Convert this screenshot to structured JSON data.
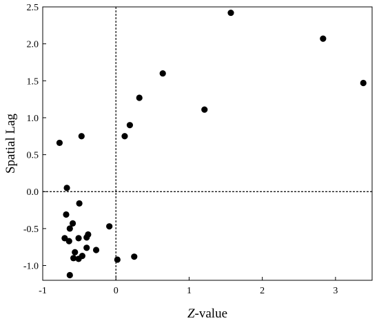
{
  "chart_data": {
    "type": "scatter",
    "xlabel_italic": "Z",
    "xlabel_rest": "-value",
    "ylabel": "Spatial Lag",
    "xlim": [
      -1,
      3.5
    ],
    "ylim": [
      -1.2,
      2.5
    ],
    "x_ticks": [
      -1,
      0,
      1,
      2,
      3
    ],
    "y_ticks": [
      2.5,
      2.0,
      1.5,
      1.0,
      0.5,
      0.0,
      -0.5,
      -1.0
    ],
    "x_tick_labels": [
      "-1",
      "0",
      "1",
      "2",
      "3"
    ],
    "y_tick_labels": [
      "2.5",
      "2.0",
      "1.5",
      "1.0",
      "0.5",
      "0.0",
      "-0.5",
      "-1.0"
    ],
    "reference_lines": {
      "x": 0,
      "y": 0,
      "style": "dashed"
    },
    "grid": false,
    "marker_color": "#000000",
    "points": [
      {
        "x": 1.57,
        "y": 2.42
      },
      {
        "x": 2.83,
        "y": 2.07
      },
      {
        "x": 3.38,
        "y": 1.47
      },
      {
        "x": 0.64,
        "y": 1.6
      },
      {
        "x": 0.32,
        "y": 1.27
      },
      {
        "x": 1.21,
        "y": 1.11
      },
      {
        "x": 0.19,
        "y": 0.9
      },
      {
        "x": 0.12,
        "y": 0.75
      },
      {
        "x": -0.77,
        "y": 0.66
      },
      {
        "x": -0.47,
        "y": 0.75
      },
      {
        "x": -0.67,
        "y": 0.05
      },
      {
        "x": -0.5,
        "y": -0.16
      },
      {
        "x": -0.68,
        "y": -0.31
      },
      {
        "x": -0.59,
        "y": -0.43
      },
      {
        "x": -0.63,
        "y": -0.5
      },
      {
        "x": -0.09,
        "y": -0.47
      },
      {
        "x": -0.38,
        "y": -0.58
      },
      {
        "x": -0.4,
        "y": -0.62
      },
      {
        "x": -0.51,
        "y": -0.63
      },
      {
        "x": -0.7,
        "y": -0.63
      },
      {
        "x": -0.64,
        "y": -0.67
      },
      {
        "x": -0.4,
        "y": -0.76
      },
      {
        "x": -0.27,
        "y": -0.79
      },
      {
        "x": -0.56,
        "y": -0.82
      },
      {
        "x": -0.46,
        "y": -0.87
      },
      {
        "x": -0.58,
        "y": -0.9
      },
      {
        "x": -0.51,
        "y": -0.91
      },
      {
        "x": 0.25,
        "y": -0.88
      },
      {
        "x": 0.02,
        "y": -0.92
      },
      {
        "x": -0.63,
        "y": -1.13
      }
    ]
  }
}
